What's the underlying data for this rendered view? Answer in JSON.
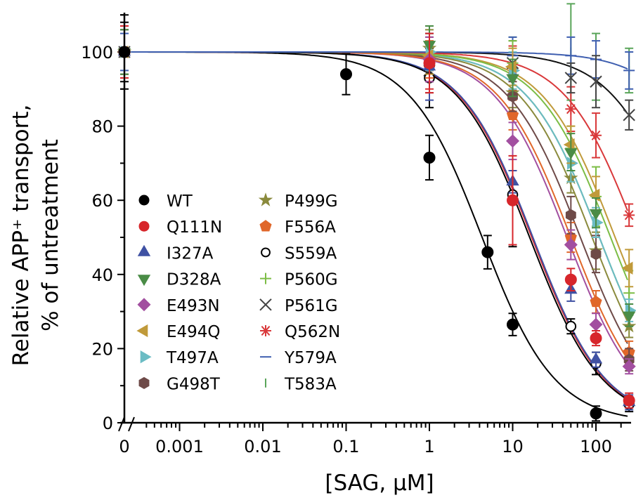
{
  "chart_data": {
    "type": "scatter",
    "xlabel": "[SAG, μM]",
    "ylabel_line1": "Relative APP⁺ transport,",
    "ylabel_line2": "% of untreatment",
    "xscale": "log (with 0 break)",
    "xticks": [
      "0",
      "0.001",
      "0.01",
      "0.1",
      "1",
      "10",
      "100"
    ],
    "xtick_values": [
      0,
      0.001,
      0.01,
      0.1,
      1,
      10,
      100
    ],
    "yticks": [
      "0",
      "20",
      "40",
      "60",
      "80",
      "100"
    ],
    "ytick_values": [
      0,
      20,
      40,
      60,
      80,
      100
    ],
    "xlim": [
      0.0003,
      250
    ],
    "ylim": [
      0,
      110
    ],
    "legend_position": "center-left",
    "series": [
      {
        "name": "WT",
        "color": "#000000",
        "marker": "circle",
        "x": [
          0,
          0.1,
          1,
          5,
          10,
          100
        ],
        "y": [
          100,
          94,
          71.5,
          46,
          26.5,
          2.5
        ],
        "err": [
          10,
          5.5,
          6,
          4.5,
          3,
          2
        ],
        "ic50": 4.3
      },
      {
        "name": "Q111N",
        "color": "#d7262b",
        "marker": "circle",
        "x": [
          0,
          1,
          10,
          50,
          100,
          250
        ],
        "y": [
          100,
          97,
          60,
          38.6,
          22.8,
          6
        ],
        "err": [
          7,
          8,
          12,
          3,
          2,
          2
        ],
        "ic50": 17
      },
      {
        "name": "I327A",
        "color": "#3f51a3",
        "marker": "triangle-up",
        "x": [
          0,
          1,
          10,
          50,
          100,
          250
        ],
        "y": [
          100,
          96,
          65,
          35.8,
          17,
          5.5
        ],
        "err": [
          7,
          9,
          3,
          3,
          2,
          2
        ],
        "ic50": 17.5
      },
      {
        "name": "D328A",
        "color": "#4a8c46",
        "marker": "triangle-down",
        "x": [
          0,
          1,
          10,
          50,
          100,
          250
        ],
        "y": [
          100,
          102,
          93,
          73,
          56.6,
          29
        ],
        "err": [
          6,
          5,
          5,
          5,
          4,
          3
        ],
        "ic50": 110
      },
      {
        "name": "E493N",
        "color": "#a24fa0",
        "marker": "diamond",
        "x": [
          0,
          1,
          10,
          50,
          100,
          250
        ],
        "y": [
          100,
          98,
          76,
          48,
          26.5,
          15.2
        ],
        "err": [
          6,
          6,
          5,
          4,
          3,
          2
        ],
        "ic50": 45
      },
      {
        "name": "E494Q",
        "color": "#c09a3a",
        "marker": "triangle-left",
        "x": [
          0,
          1,
          10,
          50,
          100,
          250
        ],
        "y": [
          100,
          99,
          96,
          75,
          61.4,
          41.7
        ],
        "err": [
          6,
          5,
          5,
          5,
          5,
          5
        ],
        "ic50": 170
      },
      {
        "name": "T497A",
        "color": "#6bbcc4",
        "marker": "triangle-right",
        "x": [
          0,
          1,
          10,
          50,
          100,
          250
        ],
        "y": [
          100,
          100,
          95,
          70,
          54,
          30.3
        ],
        "err": [
          6,
          5,
          5,
          5,
          4,
          3
        ],
        "ic50": 110
      },
      {
        "name": "G498T",
        "color": "#6e4a48",
        "marker": "hexagon",
        "x": [
          0,
          1,
          10,
          50,
          100,
          250
        ],
        "y": [
          100,
          97,
          88,
          56,
          45.5,
          17
        ],
        "err": [
          6,
          5,
          4,
          5,
          5,
          3
        ],
        "ic50": 65
      },
      {
        "name": "P499G",
        "color": "#8a8a3c",
        "marker": "star",
        "x": [
          0,
          1,
          10,
          50,
          100,
          250
        ],
        "y": [
          100,
          101,
          89,
          66,
          46.4,
          26
        ],
        "err": [
          6,
          5,
          4,
          4,
          5,
          3
        ],
        "ic50": 90
      },
      {
        "name": "F556A",
        "color": "#e0672a",
        "marker": "pentagon",
        "x": [
          0,
          1,
          10,
          50,
          100,
          250
        ],
        "y": [
          100,
          98,
          83,
          50,
          32.6,
          19
        ],
        "err": [
          6,
          5,
          4,
          4,
          3,
          3
        ],
        "ic50": 50
      },
      {
        "name": "S559A",
        "color": "#000000",
        "marker": "open-circle",
        "x": [
          0,
          1,
          10,
          50,
          100,
          250
        ],
        "y": [
          100,
          93,
          61.5,
          26,
          16,
          5
        ],
        "err": [
          8,
          8,
          14,
          2,
          3,
          2
        ],
        "ic50": 16
      },
      {
        "name": "P560G",
        "color": "#7cbd45",
        "marker": "plus",
        "x": [
          0,
          1,
          10,
          50,
          100,
          250
        ],
        "y": [
          100,
          99,
          97,
          74,
          61,
          35
        ],
        "err": [
          6,
          6,
          6,
          6,
          8,
          6
        ],
        "ic50": 150
      },
      {
        "name": "P561G",
        "color": "#444444",
        "marker": "x",
        "x": [
          0,
          1,
          10,
          50,
          100,
          250
        ],
        "y": [
          100,
          95,
          97,
          93,
          92,
          83
        ],
        "err": [
          6,
          6,
          6,
          4,
          7,
          4
        ],
        "ic50": 1200
      },
      {
        "name": "Q562N",
        "color": "#d9383a",
        "marker": "asterisk",
        "x": [
          0,
          1,
          10,
          50,
          100,
          250
        ],
        "y": [
          100,
          96,
          95.6,
          84.6,
          77.5,
          56
        ],
        "err": [
          6,
          6,
          6,
          6,
          6,
          3
        ],
        "ic50": 320
      },
      {
        "name": "Y579A",
        "color": "#3f5fb0",
        "marker": "dash",
        "x": [
          0,
          1,
          10,
          50,
          100,
          250
        ],
        "y": [
          100,
          99,
          99,
          99,
          98,
          95
        ],
        "err": [
          5,
          5,
          5,
          5,
          5,
          5
        ],
        "ic50": 5000
      },
      {
        "name": "T583A",
        "color": "#5aa55a",
        "marker": "vbar",
        "x": [
          0,
          1,
          10,
          50,
          100,
          250
        ],
        "y": [
          100,
          100,
          99,
          100,
          96,
          95
        ],
        "err": [
          6,
          5,
          5,
          13,
          9,
          6
        ],
        "ic50": null
      }
    ]
  }
}
